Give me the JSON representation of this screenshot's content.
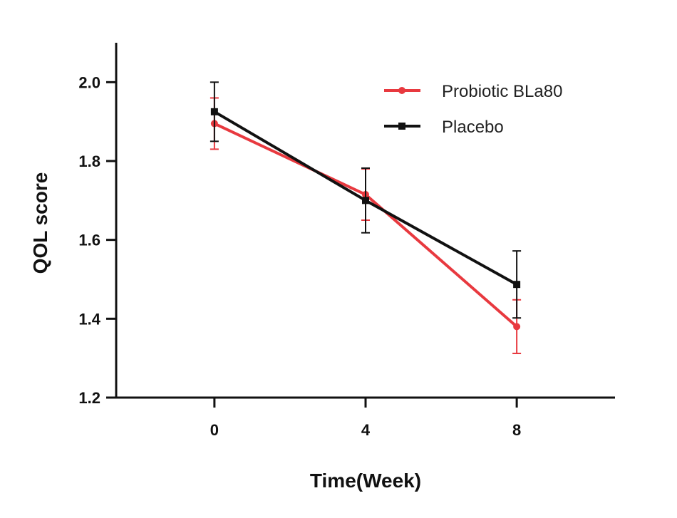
{
  "chart_data": {
    "type": "line",
    "xlabel": "Time(Week)",
    "ylabel": "QOL score",
    "x": [
      0,
      4,
      8
    ],
    "xticks": [
      0,
      4,
      8
    ],
    "xticklabels": [
      "0",
      "4",
      "8"
    ],
    "xlim": [
      -2.6,
      10.6
    ],
    "ylim": [
      1.2,
      2.1
    ],
    "yticks": [
      1.2,
      1.4,
      1.6,
      1.8,
      2.0
    ],
    "yticklabels": [
      "1.2",
      "1.4",
      "1.6",
      "1.8",
      "2.0"
    ],
    "grid": false,
    "legend_position": "top-right",
    "series": [
      {
        "name": "Probiotic BLa80",
        "color": "#e8393f",
        "marker": "circle",
        "values": [
          1.895,
          1.715,
          1.38
        ],
        "error": [
          0.065,
          0.065,
          0.068
        ]
      },
      {
        "name": "Placebo",
        "color": "#111111",
        "marker": "square",
        "values": [
          1.925,
          1.7,
          1.487
        ],
        "error": [
          0.075,
          0.082,
          0.085
        ]
      }
    ]
  }
}
